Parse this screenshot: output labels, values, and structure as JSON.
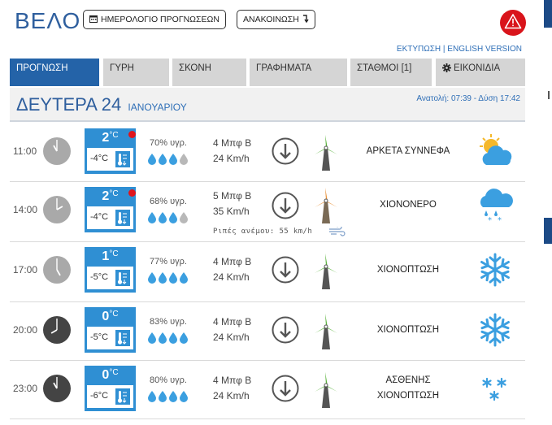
{
  "header": {
    "city": "ΒΕΛΟ",
    "calendar_label": "ΗΜΕΡΟΛΟΓΙΟ ΠΡΟΓΝΩΣΕΩΝ",
    "announcement_label": "ΑΝΑΚΟΙΝΩΣΗ",
    "print_link": "ΕΚΤΥΠΩΣΗ",
    "separator": "|",
    "english_link": "ENGLISH VERSION"
  },
  "tabs": [
    {
      "label": "ΠΡΟΓΝΩΣΗ",
      "active": true
    },
    {
      "label": "ΓΥΡΗ"
    },
    {
      "label": "ΣΚΟΝΗ"
    },
    {
      "label": "ΓΡΑΦΗΜΑΤΑ"
    },
    {
      "label": "ΣΤΑΘΜΟΙ [1]"
    },
    {
      "label": "ΕΙΚΟΝΙΔΙΑ",
      "icon": "gear-icon"
    }
  ],
  "day": {
    "title": "ΔΕΥΤΕΡΑ 24",
    "month": "ΙΑΝΟΥΑΡΙΟΥ",
    "sun": "Ανατολή: 07:39 - Δύση 17:42"
  },
  "unit": "°C",
  "forecast": [
    {
      "time": "11:00",
      "tmax": "2",
      "tmin": "-4°C",
      "alert": true,
      "humidity": "70% υγρ.",
      "drops_filled": 3,
      "wind_bf": "4 Μπφ Β",
      "wind_kmh": "24 Km/h",
      "turbine": "green",
      "condition": [
        "ΑΡΚΕΤΑ ΣΥΝΝΕΦΑ"
      ],
      "icon": "partly-cloudy-icon",
      "clock_dark": false
    },
    {
      "time": "14:00",
      "tmax": "2",
      "tmin": "-4°C",
      "alert": true,
      "humidity": "68% υγρ.",
      "drops_filled": 3,
      "wind_bf": "5 Μπφ Β",
      "wind_kmh": "35 Km/h",
      "gust": "Ριπές ανέμου: 55 km/h",
      "turbine": "orange",
      "condition": [
        "ΧΙΟΝΟΝΕΡΟ"
      ],
      "icon": "sleet-icon",
      "clock_dark": false
    },
    {
      "time": "17:00",
      "tmax": "1",
      "tmin": "-5°C",
      "alert": false,
      "humidity": "77% υγρ.",
      "drops_filled": 4,
      "wind_bf": "4 Μπφ Β",
      "wind_kmh": "24 Km/h",
      "turbine": "green",
      "condition": [
        "ΧΙΟΝΟΠΤΩΣΗ"
      ],
      "icon": "snowflake-icon",
      "clock_dark": false
    },
    {
      "time": "20:00",
      "tmax": "0",
      "tmin": "-5°C",
      "alert": false,
      "humidity": "83% υγρ.",
      "drops_filled": 4,
      "wind_bf": "4 Μπφ Β",
      "wind_kmh": "24 Km/h",
      "turbine": "green",
      "condition": [
        "ΧΙΟΝΟΠΤΩΣΗ"
      ],
      "icon": "snowflake-icon",
      "clock_dark": true
    },
    {
      "time": "23:00",
      "tmax": "0",
      "tmin": "-6°C",
      "alert": false,
      "humidity": "80% υγρ.",
      "drops_filled": 4,
      "wind_bf": "4 Μπφ Β",
      "wind_kmh": "24 Km/h",
      "turbine": "green",
      "condition": [
        "ΑΣΘΕΝΗΣ",
        "ΧΙΟΝΟΠΤΩΣΗ"
      ],
      "icon": "light-snow-icon",
      "clock_dark": true
    }
  ],
  "colors": {
    "brand": "#2f5f9e",
    "tab_active": "#2463a8",
    "temp_box": "#2f8fd3",
    "alert": "#d9141b",
    "icon_blue": "#3b9fe0"
  }
}
